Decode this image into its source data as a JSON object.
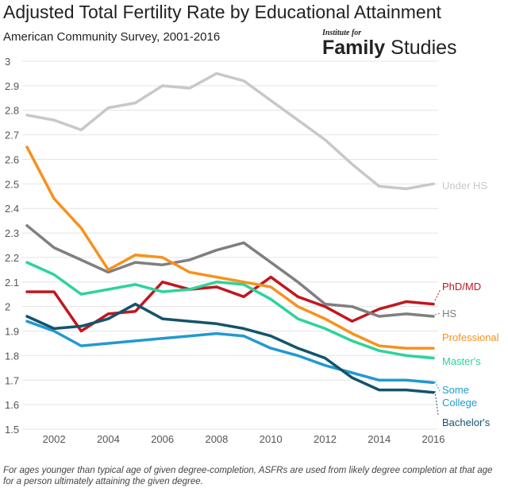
{
  "header": {
    "title": "Adjusted Total Fertility Rate by Educational Attainment",
    "subtitle": "American Community Survey, 2001-2016"
  },
  "logo": {
    "top_text": "Institute for",
    "bold_text": "Family",
    "light_text": "Studies"
  },
  "footnote": "For ages younger than typical age of given degree-completion, ASFRs are used from likely degree completion at that age for a person ultimately attaining the given degree.",
  "chart_data": {
    "type": "line",
    "title": "Adjusted Total Fertility Rate by Educational Attainment",
    "subtitle": "American Community Survey, 2001-2016",
    "xlabel": "",
    "ylabel": "",
    "x": [
      2001,
      2002,
      2003,
      2004,
      2005,
      2006,
      2007,
      2008,
      2009,
      2010,
      2011,
      2012,
      2013,
      2014,
      2015,
      2016
    ],
    "x_ticks": [
      "2002",
      "2004",
      "2006",
      "2008",
      "2010",
      "2012",
      "2014",
      "2016"
    ],
    "y_ticks": [
      "1.5",
      "1.6",
      "1.7",
      "1.8",
      "1.9",
      "2",
      "2.1",
      "2.2",
      "2.3",
      "2.4",
      "2.5",
      "2.6",
      "2.7",
      "2.8",
      "2.9",
      "3"
    ],
    "xlim": [
      2001,
      2016
    ],
    "ylim": [
      1.5,
      3.0
    ],
    "grid": "horizontal",
    "legend": "inline labels at right end of lines",
    "series": [
      {
        "name": "Under HS",
        "color": "#c8c8c8",
        "values": [
          2.78,
          2.76,
          2.72,
          2.81,
          2.83,
          2.9,
          2.89,
          2.95,
          2.92,
          2.84,
          2.76,
          2.68,
          2.58,
          2.49,
          2.48,
          2.5
        ]
      },
      {
        "name": "PhD/MD",
        "color": "#c0171f",
        "values": [
          2.06,
          2.06,
          1.9,
          1.97,
          1.98,
          2.1,
          2.07,
          2.08,
          2.04,
          2.12,
          2.04,
          2.0,
          1.94,
          1.99,
          2.02,
          2.01
        ]
      },
      {
        "name": "HS",
        "color": "#7f7f7f",
        "values": [
          2.33,
          2.24,
          2.19,
          2.14,
          2.18,
          2.17,
          2.19,
          2.23,
          2.26,
          2.18,
          2.1,
          2.01,
          2.0,
          1.96,
          1.97,
          1.96
        ]
      },
      {
        "name": "Professional",
        "color": "#f5921e",
        "values": [
          2.65,
          2.44,
          2.32,
          2.15,
          2.21,
          2.2,
          2.14,
          2.12,
          2.1,
          2.08,
          2.0,
          1.95,
          1.89,
          1.84,
          1.83,
          1.83
        ]
      },
      {
        "name": "Master's",
        "color": "#2ed39a",
        "values": [
          2.18,
          2.13,
          2.05,
          2.07,
          2.09,
          2.06,
          2.07,
          2.1,
          2.09,
          2.03,
          1.95,
          1.91,
          1.86,
          1.82,
          1.8,
          1.79
        ]
      },
      {
        "name": "Some College",
        "color": "#2399cf",
        "values": [
          1.94,
          1.9,
          1.84,
          1.85,
          1.86,
          1.87,
          1.88,
          1.89,
          1.88,
          1.83,
          1.8,
          1.76,
          1.73,
          1.7,
          1.7,
          1.69
        ]
      },
      {
        "name": "Bachelor's",
        "color": "#14536b",
        "values": [
          1.96,
          1.91,
          1.92,
          1.95,
          2.01,
          1.95,
          1.94,
          1.93,
          1.91,
          1.88,
          1.83,
          1.79,
          1.71,
          1.66,
          1.66,
          1.65
        ]
      }
    ]
  }
}
